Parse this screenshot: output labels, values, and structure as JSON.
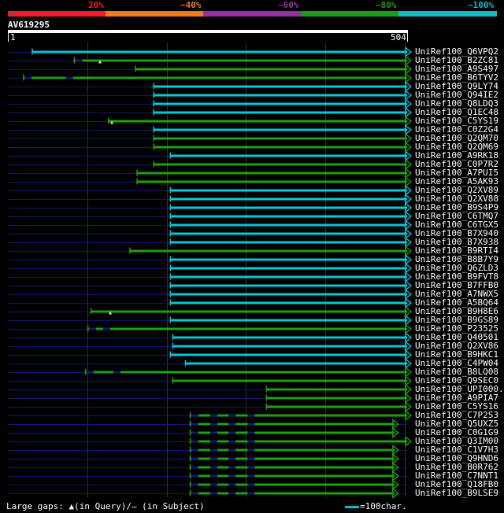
{
  "identity_legend": {
    "labels": [
      "20%",
      "~40%",
      "~60%",
      "~80%",
      "~100%"
    ],
    "colors": [
      "#ee1c2e",
      "#f07a1a",
      "#9630a0",
      "#16a010",
      "#14b8c0"
    ]
  },
  "query": {
    "id": "AV619295",
    "start_label": "1",
    "end_label": "504",
    "length": 504
  },
  "colors": {
    "teal": "#00c8d6",
    "green": "#1fa010",
    "dark": "#10186a",
    "grid": "#2c3a2c"
  },
  "hits": [
    {
      "label": "UniRef100_Q6VPQ2",
      "start": 32,
      "end": 504,
      "color": "teal",
      "arrow_at_end": true,
      "gaps_query": [],
      "gaps_subject": []
    },
    {
      "label": "UniRef100_B2ZC81",
      "start": 85,
      "end": 504,
      "color": "green",
      "arrow_at_end": true,
      "gaps_query": [
        117
      ],
      "gaps_subject": [
        85
      ]
    },
    {
      "label": "UniRef100_A9S497",
      "start": 162,
      "end": 504,
      "color": "green",
      "arrow_at_end": true,
      "gaps_query": [],
      "gaps_subject": []
    },
    {
      "label": "UniRef100_B6TYV2",
      "start": 21,
      "end": 504,
      "color": "green",
      "arrow_at_end": true,
      "gaps_query": [],
      "gaps_subject": [
        21,
        73
      ]
    },
    {
      "label": "UniRef100_Q9LY74",
      "start": 185,
      "end": 504,
      "color": "teal",
      "arrow_at_end": true,
      "gaps_query": [],
      "gaps_subject": []
    },
    {
      "label": "UniRef100_Q94IE2",
      "start": 185,
      "end": 504,
      "color": "teal",
      "arrow_at_end": true,
      "gaps_query": [],
      "gaps_subject": []
    },
    {
      "label": "UniRef100_Q8LDQ3",
      "start": 185,
      "end": 504,
      "color": "teal",
      "arrow_at_end": true,
      "gaps_query": [],
      "gaps_subject": []
    },
    {
      "label": "UniRef100_Q1EC48",
      "start": 185,
      "end": 504,
      "color": "teal",
      "arrow_at_end": true,
      "gaps_query": [],
      "gaps_subject": []
    },
    {
      "label": "UniRef100_C5YS19",
      "start": 128,
      "end": 504,
      "color": "green",
      "arrow_at_end": true,
      "gaps_query": [
        132
      ],
      "gaps_subject": []
    },
    {
      "label": "UniRef100_C0Z2G4",
      "start": 185,
      "end": 504,
      "color": "teal",
      "arrow_at_end": true,
      "gaps_query": [],
      "gaps_subject": []
    },
    {
      "label": "UniRef100_Q2QM70",
      "start": 185,
      "end": 504,
      "color": "green",
      "arrow_at_end": true,
      "gaps_query": [],
      "gaps_subject": []
    },
    {
      "label": "UniRef100_Q2QM69",
      "start": 185,
      "end": 504,
      "color": "green",
      "arrow_at_end": true,
      "gaps_query": [],
      "gaps_subject": []
    },
    {
      "label": "UniRef100_A9RK18",
      "start": 206,
      "end": 504,
      "color": "teal",
      "arrow_at_end": true,
      "gaps_query": [],
      "gaps_subject": []
    },
    {
      "label": "UniRef100_C0P7R2",
      "start": 185,
      "end": 504,
      "color": "green",
      "arrow_at_end": true,
      "gaps_query": [],
      "gaps_subject": []
    },
    {
      "label": "UniRef100_A7PUI5",
      "start": 164,
      "end": 504,
      "color": "green",
      "arrow_at_end": true,
      "gaps_query": [],
      "gaps_subject": []
    },
    {
      "label": "UniRef100_A5AK93",
      "start": 164,
      "end": 504,
      "color": "green",
      "arrow_at_end": true,
      "gaps_query": [],
      "gaps_subject": []
    },
    {
      "label": "UniRef100_Q2XV89",
      "start": 206,
      "end": 504,
      "color": "teal",
      "arrow_at_end": true,
      "gaps_query": [],
      "gaps_subject": []
    },
    {
      "label": "UniRef100_Q2XV88",
      "start": 206,
      "end": 504,
      "color": "teal",
      "arrow_at_end": true,
      "gaps_query": [],
      "gaps_subject": []
    },
    {
      "label": "UniRef100_B9S4P9",
      "start": 206,
      "end": 504,
      "color": "teal",
      "arrow_at_end": true,
      "gaps_query": [],
      "gaps_subject": []
    },
    {
      "label": "UniRef100_C6TMQ7",
      "start": 206,
      "end": 504,
      "color": "teal",
      "arrow_at_end": true,
      "gaps_query": [],
      "gaps_subject": []
    },
    {
      "label": "UniRef100_C6TGX5",
      "start": 206,
      "end": 504,
      "color": "teal",
      "arrow_at_end": true,
      "gaps_query": [],
      "gaps_subject": []
    },
    {
      "label": "UniRef100_B7X940",
      "start": 206,
      "end": 504,
      "color": "teal",
      "arrow_at_end": true,
      "gaps_query": [],
      "gaps_subject": []
    },
    {
      "label": "UniRef100_B7X938",
      "start": 206,
      "end": 504,
      "color": "teal",
      "arrow_at_end": true,
      "gaps_query": [],
      "gaps_subject": []
    },
    {
      "label": "UniRef100_B9RTI4",
      "start": 155,
      "end": 504,
      "color": "green",
      "arrow_at_end": true,
      "gaps_query": [],
      "gaps_subject": []
    },
    {
      "label": "UniRef100_B8B7Y9",
      "start": 206,
      "end": 504,
      "color": "teal",
      "arrow_at_end": true,
      "gaps_query": [],
      "gaps_subject": []
    },
    {
      "label": "UniRef100_Q6ZLD3",
      "start": 206,
      "end": 504,
      "color": "teal",
      "arrow_at_end": true,
      "gaps_query": [],
      "gaps_subject": []
    },
    {
      "label": "UniRef100_B9FVT8",
      "start": 206,
      "end": 504,
      "color": "teal",
      "arrow_at_end": true,
      "gaps_query": [],
      "gaps_subject": []
    },
    {
      "label": "UniRef100_B7FFB0",
      "start": 206,
      "end": 504,
      "color": "teal",
      "arrow_at_end": true,
      "gaps_query": [],
      "gaps_subject": []
    },
    {
      "label": "UniRef100_A7NWX5",
      "start": 206,
      "end": 504,
      "color": "teal",
      "arrow_at_end": true,
      "gaps_query": [],
      "gaps_subject": []
    },
    {
      "label": "UniRef100_A5BQ64",
      "start": 206,
      "end": 504,
      "color": "teal",
      "arrow_at_end": true,
      "gaps_query": [],
      "gaps_subject": []
    },
    {
      "label": "UniRef100_B9H8E6",
      "start": 106,
      "end": 504,
      "color": "green",
      "arrow_at_end": true,
      "gaps_query": [
        130
      ],
      "gaps_subject": []
    },
    {
      "label": "UniRef100_B9GS89",
      "start": 206,
      "end": 504,
      "color": "teal",
      "arrow_at_end": true,
      "gaps_query": [],
      "gaps_subject": []
    },
    {
      "label": "UniRef100_P23525",
      "start": 102,
      "end": 504,
      "color": "green",
      "arrow_at_end": true,
      "gaps_query": [],
      "gaps_subject": [
        102,
        120
      ]
    },
    {
      "label": "UniRef100_Q40501",
      "start": 209,
      "end": 504,
      "color": "teal",
      "arrow_at_end": true,
      "gaps_query": [],
      "gaps_subject": []
    },
    {
      "label": "UniRef100_Q2XV86",
      "start": 209,
      "end": 504,
      "color": "teal",
      "arrow_at_end": true,
      "gaps_query": [],
      "gaps_subject": []
    },
    {
      "label": "UniRef100_B9HKC1",
      "start": 206,
      "end": 504,
      "color": "teal",
      "arrow_at_end": true,
      "gaps_query": [],
      "gaps_subject": []
    },
    {
      "label": "UniRef100_C4PW04",
      "start": 225,
      "end": 504,
      "color": "teal",
      "arrow_at_end": true,
      "gaps_query": [],
      "gaps_subject": []
    },
    {
      "label": "UniRef100_B8LQ08",
      "start": 99,
      "end": 504,
      "color": "green",
      "arrow_at_end": true,
      "gaps_query": [],
      "gaps_subject": [
        99,
        133
      ]
    },
    {
      "label": "UniRef100_Q9SEC0",
      "start": 209,
      "end": 504,
      "color": "green",
      "arrow_at_end": true,
      "gaps_query": [],
      "gaps_subject": []
    },
    {
      "label": "UniRef100_UPI000..",
      "start": 327,
      "end": 504,
      "color": "green",
      "arrow_at_end": true,
      "gaps_query": [],
      "gaps_subject": []
    },
    {
      "label": "UniRef100_A9PIA7",
      "start": 327,
      "end": 504,
      "color": "green",
      "arrow_at_end": true,
      "gaps_query": [],
      "gaps_subject": []
    },
    {
      "label": "UniRef100_C5YS16",
      "start": 327,
      "end": 504,
      "color": "green",
      "arrow_at_end": true,
      "gaps_query": [],
      "gaps_subject": []
    },
    {
      "label": "UniRef100_C7P2S3",
      "start": 231,
      "end": 504,
      "color": "green",
      "arrow_at_end": true,
      "gaps_query": [],
      "gaps_subject": [
        231,
        255,
        278,
        302
      ]
    },
    {
      "label": "UniRef100_Q5UXZ5",
      "start": 231,
      "end": 488,
      "color": "green",
      "arrow_at_end": true,
      "gaps_query": [],
      "gaps_subject": [
        231,
        255,
        278,
        302
      ]
    },
    {
      "label": "UniRef100_C0G1G9",
      "start": 231,
      "end": 488,
      "color": "green",
      "arrow_at_end": true,
      "gaps_query": [],
      "gaps_subject": [
        231,
        255,
        278,
        302
      ]
    },
    {
      "label": "UniRef100_Q3IM00",
      "start": 231,
      "end": 504,
      "color": "green",
      "arrow_at_end": true,
      "gaps_query": [],
      "gaps_subject": [
        231,
        255,
        278,
        302
      ]
    },
    {
      "label": "UniRef100_C1V7H3",
      "start": 231,
      "end": 488,
      "color": "green",
      "arrow_at_end": true,
      "gaps_query": [],
      "gaps_subject": [
        231,
        255,
        278,
        302
      ]
    },
    {
      "label": "UniRef100_Q9HND6",
      "start": 231,
      "end": 488,
      "color": "green",
      "arrow_at_end": true,
      "gaps_query": [],
      "gaps_subject": [
        231,
        255,
        278,
        302
      ]
    },
    {
      "label": "UniRef100_B0R762",
      "start": 231,
      "end": 488,
      "color": "green",
      "arrow_at_end": true,
      "gaps_query": [],
      "gaps_subject": [
        231,
        255,
        278,
        302
      ]
    },
    {
      "label": "UniRef100_C7NNT1",
      "start": 231,
      "end": 488,
      "color": "green",
      "arrow_at_end": true,
      "gaps_query": [],
      "gaps_subject": [
        231,
        255,
        278,
        302
      ]
    },
    {
      "label": "UniRef100_Q18FB0",
      "start": 231,
      "end": 488,
      "color": "green",
      "arrow_at_end": true,
      "gaps_query": [],
      "gaps_subject": [
        231,
        255,
        278,
        302
      ]
    },
    {
      "label": "UniRef100_B9LSE9",
      "start": 231,
      "end": 488,
      "color": "green",
      "arrow_at_end": true,
      "gaps_query": [],
      "gaps_subject": [
        231,
        255,
        278,
        302
      ]
    }
  ],
  "footer": {
    "legend_text": "Large gaps: ▲(in Query)/– (in Subject)",
    "scale_text": "=100char."
  }
}
